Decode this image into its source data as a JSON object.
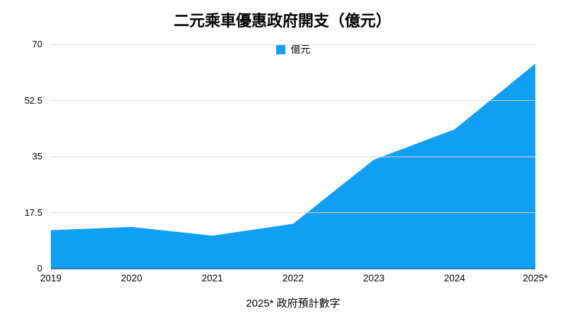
{
  "title": "二元乘車優惠政府開支（億元）",
  "legend": {
    "label": "億元",
    "swatch_color": "#0FA0F3"
  },
  "footnote": "2025* 政府預計數字",
  "colors": {
    "area": "#0FA0F3",
    "axis_line": "#2D7CB2",
    "gridline": "#DADADA",
    "text": "#000000",
    "background": "#FFFFFF"
  },
  "chart_data": {
    "type": "area",
    "title": "二元乘車優惠政府開支（億元）",
    "categories": [
      "2019",
      "2020",
      "2021",
      "2022",
      "2023",
      "2024",
      "2025*"
    ],
    "series": [
      {
        "name": "億元",
        "values": [
          12,
          13,
          10.3,
          14,
          34,
          43.5,
          64
        ]
      }
    ],
    "xlabel": "",
    "ylabel": "億元",
    "ylim": [
      0,
      70
    ],
    "yticks": [
      70,
      52.5,
      35,
      17.5,
      0
    ],
    "ytick_labels": [
      "70",
      "52.5",
      "35",
      "17.5",
      "0"
    ],
    "grid": true,
    "legend_position": "top-center",
    "footnote": "2025* 政府預計數字"
  }
}
